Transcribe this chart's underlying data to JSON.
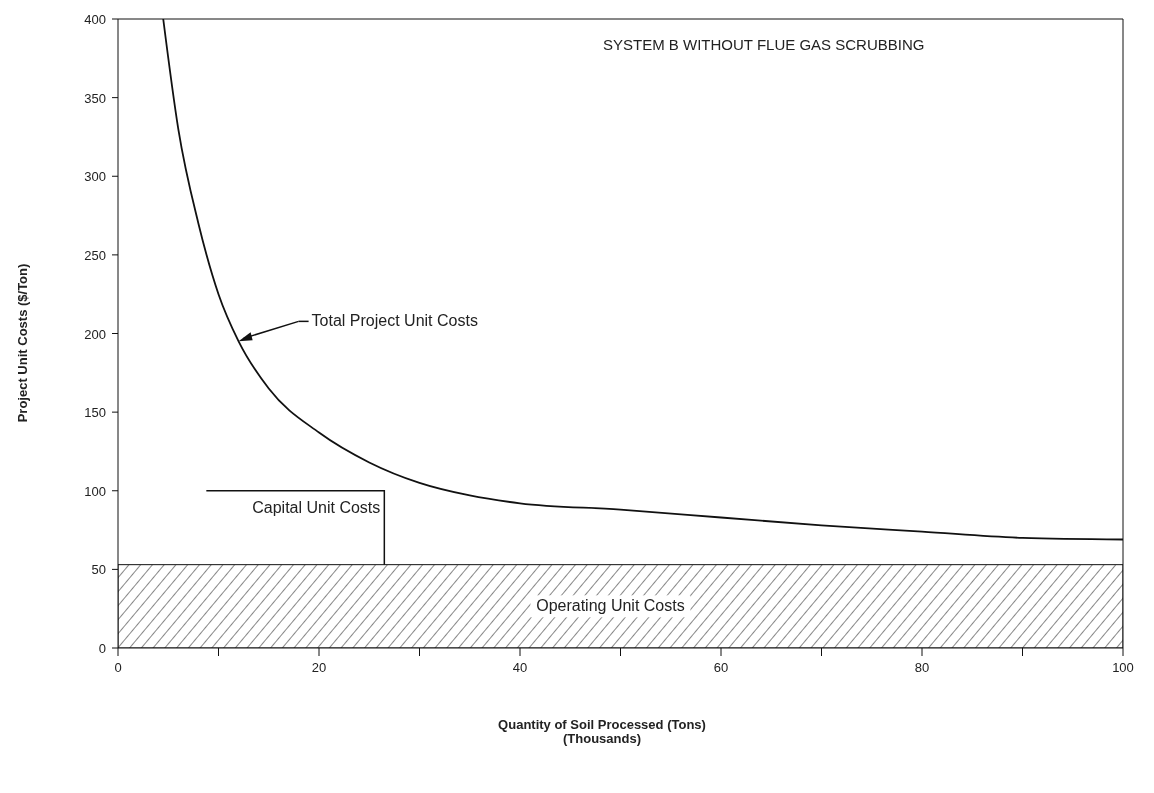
{
  "chart_data": {
    "type": "line",
    "title": "SYSTEM B WITHOUT FLUE GAS SCRUBBING",
    "xlabel": "Quantity of Soil Processed (Tons)\n(Thousands)",
    "ylabel": "Project Unit Costs ($/Ton)",
    "x": [
      4.5,
      6,
      8,
      10,
      12,
      15,
      20,
      25,
      30,
      35,
      40,
      50,
      60,
      70,
      80,
      90,
      100
    ],
    "series": [
      {
        "color": "#111111",
        "values": [
          400,
          330,
          270,
          225,
          195,
          165,
          137,
          118,
          105,
          97,
          92,
          88,
          83,
          78,
          74,
          70,
          69
        ]
      }
    ],
    "xlim": [
      0,
      100
    ],
    "ylim": [
      0,
      400
    ],
    "xticks": [
      0,
      {
        "value": 10,
        "label": null
      },
      20,
      {
        "value": 30,
        "label": null
      },
      40,
      {
        "value": 50,
        "label": null
      },
      60,
      {
        "value": 70,
        "label": null
      },
      80,
      {
        "value": 90,
        "label": null
      },
      100
    ],
    "yticks": [
      0,
      50,
      100,
      150,
      200,
      250,
      300,
      350,
      400
    ],
    "bands": [
      {
        "axis": "y",
        "from": 0,
        "to": 53,
        "label": "Operating Unit Costs",
        "color": "#111111"
      }
    ],
    "annotations": [
      {
        "text": "Total Project Unit Costs",
        "x": 12,
        "y": 195
      },
      {
        "text": "Capital Unit Costs",
        "x": 26.5,
        "y": 53
      }
    ],
    "grid": false,
    "legend": false,
    "marker": "none",
    "line_style": "solid"
  }
}
